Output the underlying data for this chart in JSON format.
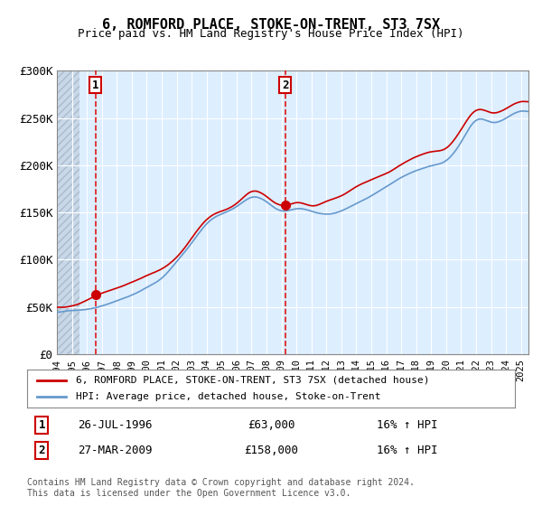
{
  "title": "6, ROMFORD PLACE, STOKE-ON-TRENT, ST3 7SX",
  "subtitle": "Price paid vs. HM Land Registry's House Price Index (HPI)",
  "legend_line1": "6, ROMFORD PLACE, STOKE-ON-TRENT, ST3 7SX (detached house)",
  "legend_line2": "HPI: Average price, detached house, Stoke-on-Trent",
  "annotation1_label": "1",
  "annotation1_date": "26-JUL-1996",
  "annotation1_price": "£63,000",
  "annotation1_hpi": "16% ↑ HPI",
  "annotation2_label": "2",
  "annotation2_date": "27-MAR-2009",
  "annotation2_price": "£158,000",
  "annotation2_hpi": "16% ↑ HPI",
  "footer": "Contains HM Land Registry data © Crown copyright and database right 2024.\nThis data is licensed under the Open Government Licence v3.0.",
  "xmin": 1994.0,
  "xmax": 2025.5,
  "ymin": 0,
  "ymax": 300000,
  "yticks": [
    0,
    50000,
    100000,
    150000,
    200000,
    250000,
    300000
  ],
  "ytick_labels": [
    "£0",
    "£50K",
    "£100K",
    "£150K",
    "£200K",
    "£250K",
    "£300K"
  ],
  "xticks": [
    1994,
    1995,
    1996,
    1997,
    1998,
    1999,
    2000,
    2001,
    2002,
    2003,
    2004,
    2005,
    2006,
    2007,
    2008,
    2009,
    2010,
    2011,
    2012,
    2013,
    2014,
    2015,
    2016,
    2017,
    2018,
    2019,
    2020,
    2021,
    2022,
    2023,
    2024,
    2025
  ],
  "hatch_end": 1995.5,
  "vline1_x": 1996.57,
  "vline2_x": 2009.24,
  "sale1_x": 1996.57,
  "sale1_y": 63000,
  "sale2_x": 2009.24,
  "sale2_y": 158000,
  "red_line_color": "#cc0000",
  "blue_line_color": "#6699cc",
  "background_color": "#ddeeff",
  "hatch_color": "#bbccdd",
  "grid_color": "#ffffff",
  "vline_color": "#dd0000"
}
